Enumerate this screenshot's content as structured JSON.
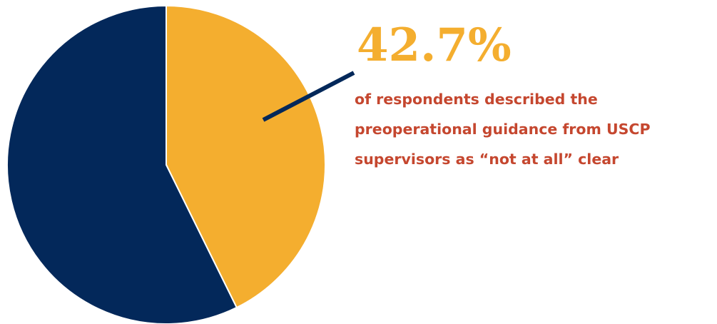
{
  "chart_data": {
    "type": "pie",
    "title": "",
    "slices": [
      {
        "label": "",
        "value": 42.7,
        "color": "#f4ae2f"
      },
      {
        "label": "",
        "value": 57.3,
        "color": "#03285a"
      }
    ],
    "start_angle_deg": 0,
    "direction": "clockwise",
    "annotation": {
      "value_text": "42.7%",
      "caption_lines": [
        "of respondents described the",
        "preoperational guidance from USCP",
        "supervisors as “not at all” clear"
      ],
      "value_color": "#f4ae2f",
      "caption_color": "#c5472f",
      "leader_color": "#03285a"
    }
  }
}
